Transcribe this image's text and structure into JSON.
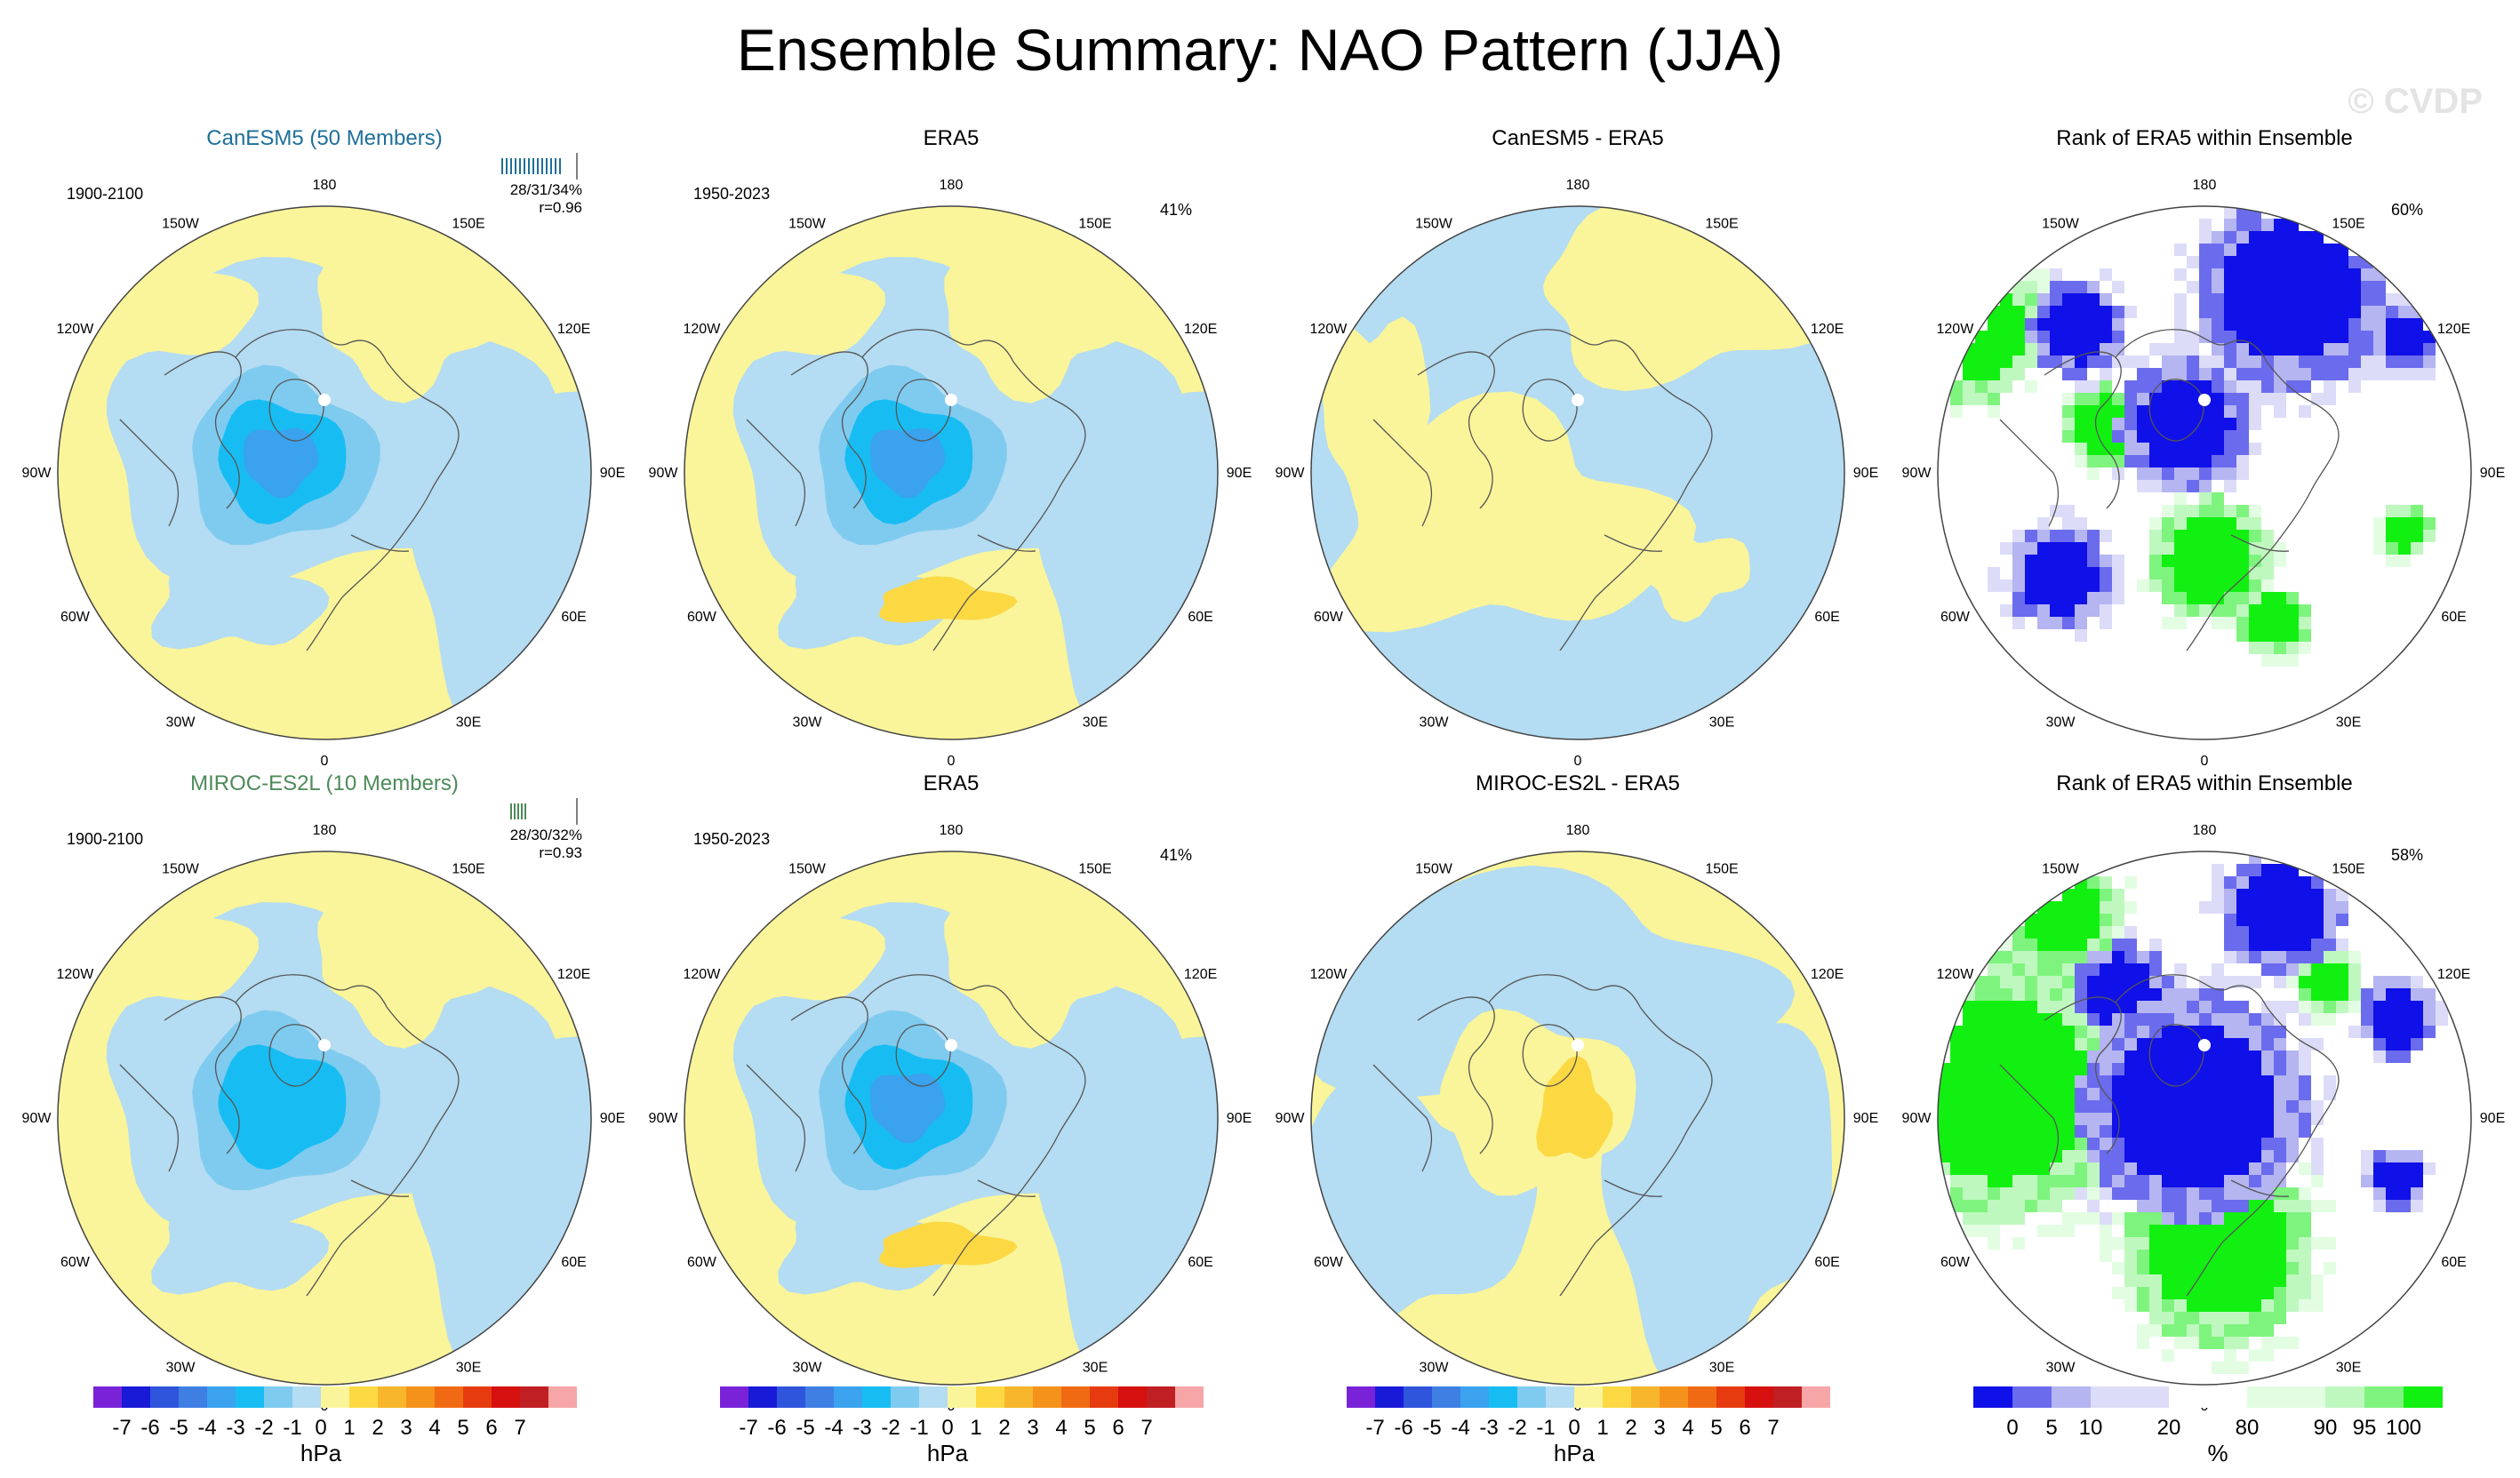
{
  "title": "Ensemble Summary: NAO Pattern (JJA)",
  "watermark": "© CVDP",
  "colors": {
    "c_-7": "#7a22d8",
    "c_-6": "#1919d8",
    "c_-5": "#2f55dc",
    "c_-4": "#3f7fe3",
    "c_-3": "#3aa2ee",
    "c_-2": "#17bdf2",
    "c_-1": "#7fcbef",
    "c_-0": "#b4dcf2",
    "c_0": "#faf59a",
    "c_1": "#fcd843",
    "c_2": "#f8b62c",
    "c_3": "#f5921c",
    "c_4": "#f06a14",
    "c_5": "#e63b0f",
    "c_6": "#d60f0f",
    "c_7": "#c01f23",
    "c_8": "#f6a6a6",
    "rank_blue": "#1010e8",
    "rank_blue2": "#6b6bee",
    "rank_blue3": "#b5b5f2",
    "rank_blue4": "#dcdcf8",
    "rank_white": "#ffffff",
    "rank_g1": "#e3fde3",
    "rank_g2": "#bff8bf",
    "rank_g3": "#7ef47e",
    "rank_green": "#12f012"
  },
  "panels": [
    {
      "title": "CanESM5 (50 Members)",
      "style": "model1",
      "period": "1900-2100",
      "stats_line1": "28/31/34%",
      "stats_line2": "r=0.96",
      "pct": "",
      "kind": "pattern",
      "variant": "can"
    },
    {
      "title": "ERA5",
      "style": "",
      "period": "1950-2023",
      "stats_line1": "",
      "stats_line2": "",
      "pct": "41%",
      "kind": "pattern",
      "variant": "era"
    },
    {
      "title": "CanESM5 - ERA5",
      "style": "",
      "period": "",
      "stats_line1": "",
      "stats_line2": "",
      "pct": "",
      "kind": "diff",
      "variant": "can"
    },
    {
      "title": "Rank of ERA5 within Ensemble",
      "style": "",
      "period": "",
      "stats_line1": "",
      "stats_line2": "",
      "pct": "60%",
      "kind": "rank",
      "variant": "can"
    },
    {
      "title": "MIROC-ES2L (10 Members)",
      "style": "model2",
      "period": "1900-2100",
      "stats_line1": "28/30/32%",
      "stats_line2": "r=0.93",
      "pct": "",
      "kind": "pattern",
      "variant": "miroc"
    },
    {
      "title": "ERA5",
      "style": "",
      "period": "1950-2023",
      "stats_line1": "",
      "stats_line2": "",
      "pct": "41%",
      "kind": "pattern",
      "variant": "era"
    },
    {
      "title": "MIROC-ES2L - ERA5",
      "style": "",
      "period": "",
      "stats_line1": "",
      "stats_line2": "",
      "pct": "",
      "kind": "diff",
      "variant": "miroc"
    },
    {
      "title": "Rank of ERA5 within Ensemble",
      "style": "",
      "period": "",
      "stats_line1": "",
      "stats_line2": "",
      "pct": "58%",
      "kind": "rank",
      "variant": "miroc"
    }
  ],
  "lon_labels": [
    "180",
    "150E",
    "120E",
    "90E",
    "60E",
    "30E",
    "0",
    "30W",
    "60W",
    "90W",
    "120W",
    "150W"
  ],
  "colorbar_hpa": {
    "labels": [
      "-7",
      "-6",
      "-5",
      "-4",
      "-3",
      "-2",
      "-1",
      "0",
      "1",
      "2",
      "3",
      "4",
      "5",
      "6",
      "7"
    ],
    "unit": "hPa"
  },
  "colorbar_rank": {
    "labels": [
      "0",
      "5",
      "10",
      "20",
      "80",
      "90",
      "95",
      "100"
    ],
    "unit": "%"
  },
  "chart_data": [
    {
      "type": "heatmap",
      "title": "CanESM5 (50 Members)",
      "subtitle": "1900-2100",
      "annotation": "28/31/34%  r=0.96",
      "units": "hPa",
      "levels": [
        -7,
        -6,
        -5,
        -4,
        -3,
        -2,
        -1,
        0,
        1,
        2,
        3,
        4,
        5,
        6,
        7
      ],
      "projection": "north polar stereographic",
      "center_min_hpa": -3
    },
    {
      "type": "heatmap",
      "title": "ERA5",
      "subtitle": "1950-2023",
      "annotation": "41%",
      "units": "hPa",
      "center_min_hpa": -3,
      "secondary_max_hpa": 1
    },
    {
      "type": "heatmap",
      "title": "CanESM5 - ERA5",
      "units": "hPa"
    },
    {
      "type": "heatmap",
      "title": "Rank of ERA5 within Ensemble",
      "annotation": "60%",
      "units": "%",
      "levels": [
        0,
        5,
        10,
        20,
        80,
        90,
        95,
        100
      ]
    },
    {
      "type": "heatmap",
      "title": "MIROC-ES2L (10 Members)",
      "subtitle": "1900-2100",
      "annotation": "28/30/32%  r=0.93",
      "units": "hPa",
      "center_min_hpa": -2
    },
    {
      "type": "heatmap",
      "title": "ERA5",
      "subtitle": "1950-2023",
      "annotation": "41%",
      "units": "hPa",
      "center_min_hpa": -3,
      "secondary_max_hpa": 1
    },
    {
      "type": "heatmap",
      "title": "MIROC-ES2L - ERA5",
      "units": "hPa",
      "center_max_hpa": 1
    },
    {
      "type": "heatmap",
      "title": "Rank of ERA5 within Ensemble",
      "annotation": "58%",
      "units": "%",
      "levels": [
        0,
        5,
        10,
        20,
        80,
        90,
        95,
        100
      ]
    }
  ]
}
